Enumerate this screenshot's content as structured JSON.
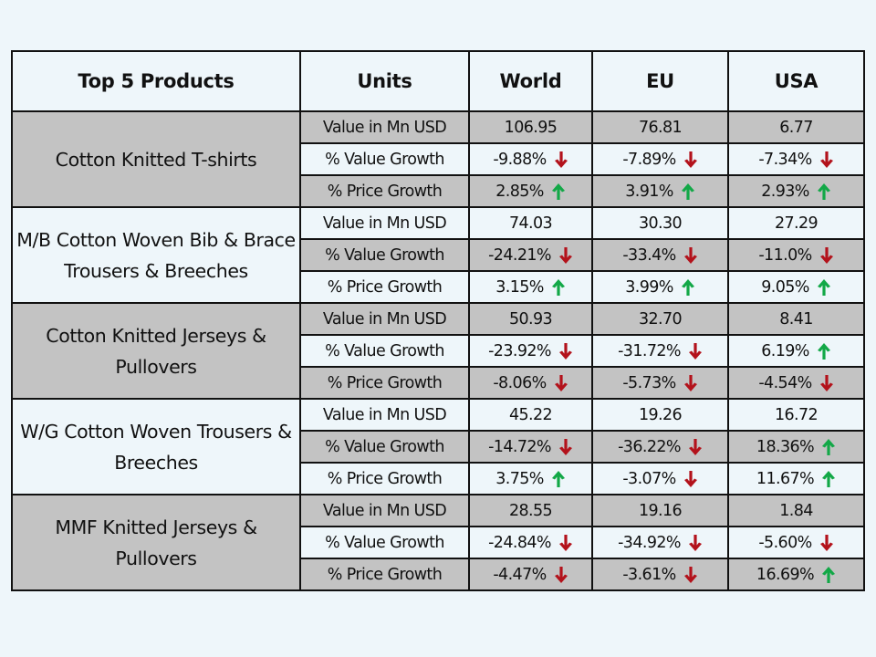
{
  "headers": [
    "Top 5 Products",
    "Units",
    "World",
    "EU",
    "USA"
  ],
  "units": [
    "Value in Mn USD",
    "% Value Growth",
    "% Price Growth"
  ],
  "colors": {
    "down": "#b3121b",
    "up": "#12a847",
    "gray": "#c3c3c3",
    "light": "#eef6fa"
  },
  "products": [
    {
      "name": "Cotton Knitted  T-shirts",
      "shade": "g",
      "rows": [
        {
          "unit": "Value in Mn USD",
          "world": {
            "v": "106.95"
          },
          "eu": {
            "v": "76.81"
          },
          "usa": {
            "v": "6.77"
          }
        },
        {
          "unit": "% Value Growth",
          "world": {
            "v": "-9.88%",
            "dir": "down"
          },
          "eu": {
            "v": "-7.89%",
            "dir": "down"
          },
          "usa": {
            "v": "-7.34%",
            "dir": "down"
          }
        },
        {
          "unit": "% Price Growth",
          "world": {
            "v": "2.85%",
            "dir": "up"
          },
          "eu": {
            "v": "3.91%",
            "dir": "up"
          },
          "usa": {
            "v": "2.93%",
            "dir": "up"
          }
        }
      ]
    },
    {
      "name": "M/B Cotton Woven Bib & Brace Trousers & Breeches",
      "shade": "w",
      "rows": [
        {
          "unit": "Value in Mn USD",
          "world": {
            "v": "74.03"
          },
          "eu": {
            "v": "30.30"
          },
          "usa": {
            "v": "27.29"
          }
        },
        {
          "unit": "% Value Growth",
          "world": {
            "v": "-24.21%",
            "dir": "down"
          },
          "eu": {
            "v": "-33.4%",
            "dir": "down"
          },
          "usa": {
            "v": "-11.0%",
            "dir": "down"
          }
        },
        {
          "unit": "% Price Growth",
          "world": {
            "v": "3.15%",
            "dir": "up"
          },
          "eu": {
            "v": "3.99%",
            "dir": "up"
          },
          "usa": {
            "v": "9.05%",
            "dir": "up"
          }
        }
      ]
    },
    {
      "name": "Cotton Knitted  Jerseys & Pullovers",
      "shade": "g",
      "rows": [
        {
          "unit": "Value in Mn USD",
          "world": {
            "v": "50.93"
          },
          "eu": {
            "v": "32.70"
          },
          "usa": {
            "v": "8.41"
          }
        },
        {
          "unit": "% Value Growth",
          "world": {
            "v": "-23.92%",
            "dir": "down"
          },
          "eu": {
            "v": "-31.72%",
            "dir": "down"
          },
          "usa": {
            "v": "6.19%",
            "dir": "up"
          }
        },
        {
          "unit": "% Price Growth",
          "world": {
            "v": "-8.06%",
            "dir": "down"
          },
          "eu": {
            "v": "-5.73%",
            "dir": "down"
          },
          "usa": {
            "v": "-4.54%",
            "dir": "down"
          }
        }
      ]
    },
    {
      "name": "W/G Cotton Woven  Trousers & Breeches",
      "shade": "w",
      "rows": [
        {
          "unit": "Value in Mn USD",
          "world": {
            "v": "45.22"
          },
          "eu": {
            "v": "19.26"
          },
          "usa": {
            "v": "16.72"
          }
        },
        {
          "unit": "% Value Growth",
          "world": {
            "v": "-14.72%",
            "dir": "down"
          },
          "eu": {
            "v": "-36.22%",
            "dir": "down"
          },
          "usa": {
            "v": "18.36%",
            "dir": "up"
          }
        },
        {
          "unit": "% Price Growth",
          "world": {
            "v": "3.75%",
            "dir": "up"
          },
          "eu": {
            "v": "-3.07%",
            "dir": "down"
          },
          "usa": {
            "v": "11.67%",
            "dir": "up"
          }
        }
      ]
    },
    {
      "name": "MMF Knitted  Jerseys & Pullovers",
      "shade": "g",
      "rows": [
        {
          "unit": "Value in Mn USD",
          "world": {
            "v": "28.55"
          },
          "eu": {
            "v": "19.16"
          },
          "usa": {
            "v": "1.84"
          }
        },
        {
          "unit": "% Value Growth",
          "world": {
            "v": "-24.84%",
            "dir": "down"
          },
          "eu": {
            "v": "-34.92%",
            "dir": "down"
          },
          "usa": {
            "v": "-5.60%",
            "dir": "down"
          }
        },
        {
          "unit": "% Price Growth",
          "world": {
            "v": "-4.47%",
            "dir": "down"
          },
          "eu": {
            "v": "-3.61%",
            "dir": "down"
          },
          "usa": {
            "v": "16.69%",
            "dir": "up"
          }
        }
      ]
    }
  ]
}
